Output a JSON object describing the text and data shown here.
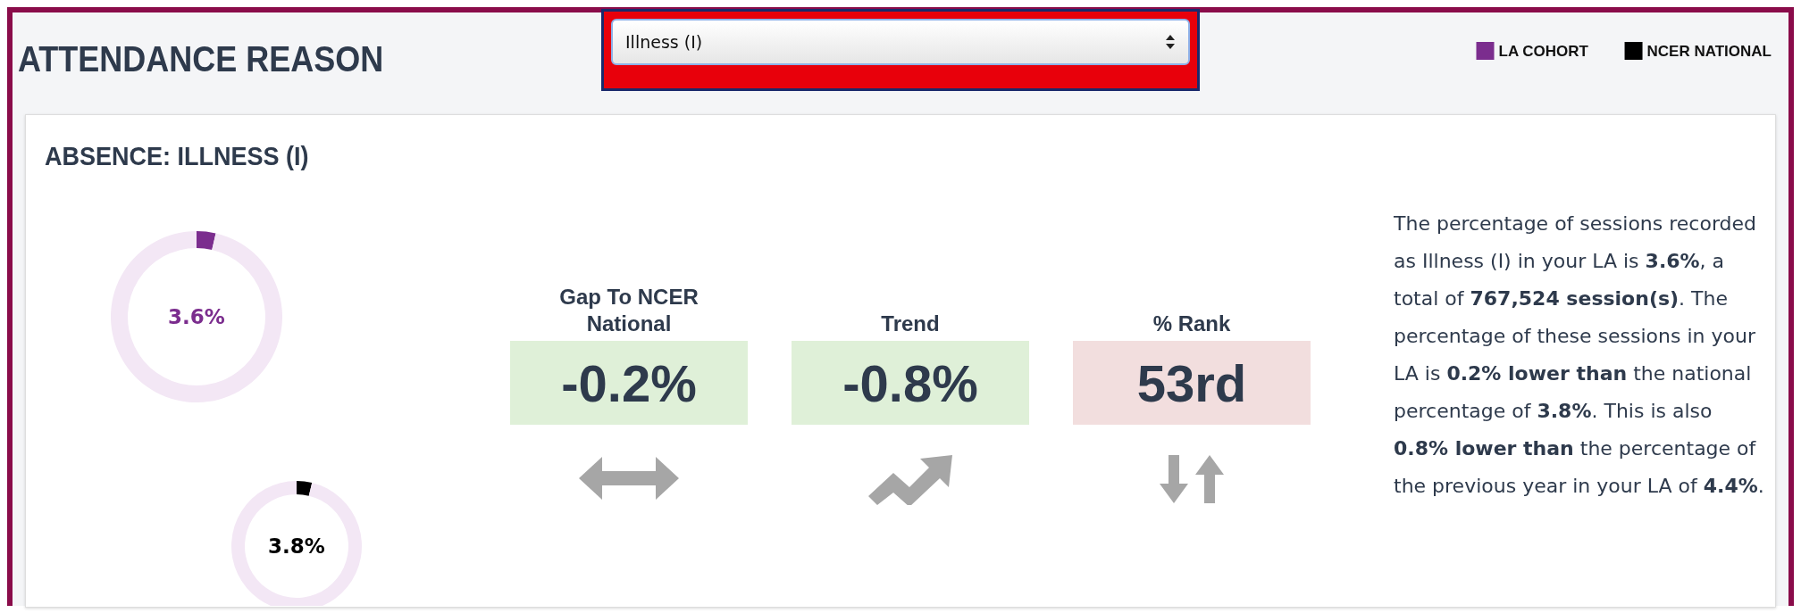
{
  "chart_data": [
    {
      "type": "donut",
      "categories": [
        null,
        null
      ],
      "legend": "top right",
      "series": [
        {
          "name": "LA COHORT",
          "color": "#7b2d8e",
          "colors": [
            "#7b2d8e",
            "#f3e7f5"
          ],
          "values": [
            3.6,
            96.4
          ],
          "value_labels": [
            "3.6%",
            null
          ]
        },
        {
          "name": "NCER NATIONAL",
          "color": "#000000",
          "colors": [
            "#000000",
            "#f3e7f5"
          ],
          "values": [
            3.8,
            96.2
          ],
          "value_labels": [
            "3.8%",
            null
          ]
        }
      ]
    },
    {
      "type": "other",
      "title": "ATTENDANCE REASON",
      "subtitle": "ABSENCE: ILLNESS (I)",
      "annotations": [
        "Illness (I)",
        "Gap To NCER National",
        "-0.2%",
        "Trend",
        "-0.8%",
        "% Rank",
        "53rd",
        "The percentage of sessions recorded as Illness (I) in your LA is ",
        "3.6%",
        ", a total of ",
        "767,524 session(s)",
        ". The percentage of these sessions in your LA is ",
        "0.2% lower than",
        " the national percentage of ",
        "3.8%",
        ". This is also ",
        "0.8% lower than",
        " the percentage of the previous year in your LA of ",
        "4.4%",
        "."
      ]
    }
  ]
}
